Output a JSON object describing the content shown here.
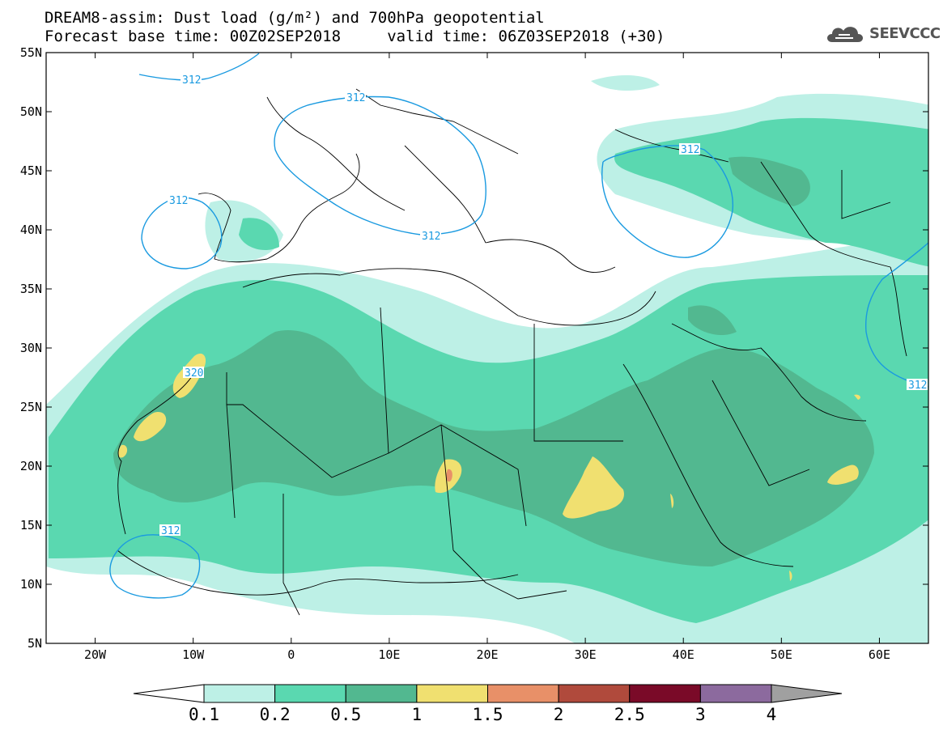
{
  "title": {
    "line1": "DREAM8-assim: Dust load (g/m²) and 700hPa geopotential",
    "line2": "Forecast base time: 00Z02SEP2018     valid time: 06Z03SEP2018 (+30)"
  },
  "logo": {
    "text": "SEEVCCC",
    "icon": "cloud-icon"
  },
  "map": {
    "lat_range": [
      5,
      55
    ],
    "lon_range": [
      -25,
      65
    ],
    "lat_ticks": [
      "55N",
      "50N",
      "45N",
      "40N",
      "35N",
      "30N",
      "25N",
      "20N",
      "15N",
      "10N",
      "5N"
    ],
    "lon_ticks": [
      "20W",
      "10W",
      "0",
      "10E",
      "20E",
      "30E",
      "40E",
      "50E",
      "60E"
    ],
    "contour_color": "#1a9ae0",
    "contour_labels": [
      "312",
      "312",
      "312",
      "312",
      "312",
      "320",
      "312",
      "312"
    ]
  },
  "colorbar": {
    "labels": [
      "0.1",
      "0.2",
      "0.5",
      "1",
      "1.5",
      "2",
      "2.5",
      "3",
      "4"
    ],
    "colors": [
      "#ffffff",
      "#bdf0e6",
      "#5ad8b0",
      "#52b890",
      "#f0e070",
      "#e89068",
      "#b04a3c",
      "#7a0a28",
      "#8c6a9e",
      "#a0a0a0"
    ]
  }
}
